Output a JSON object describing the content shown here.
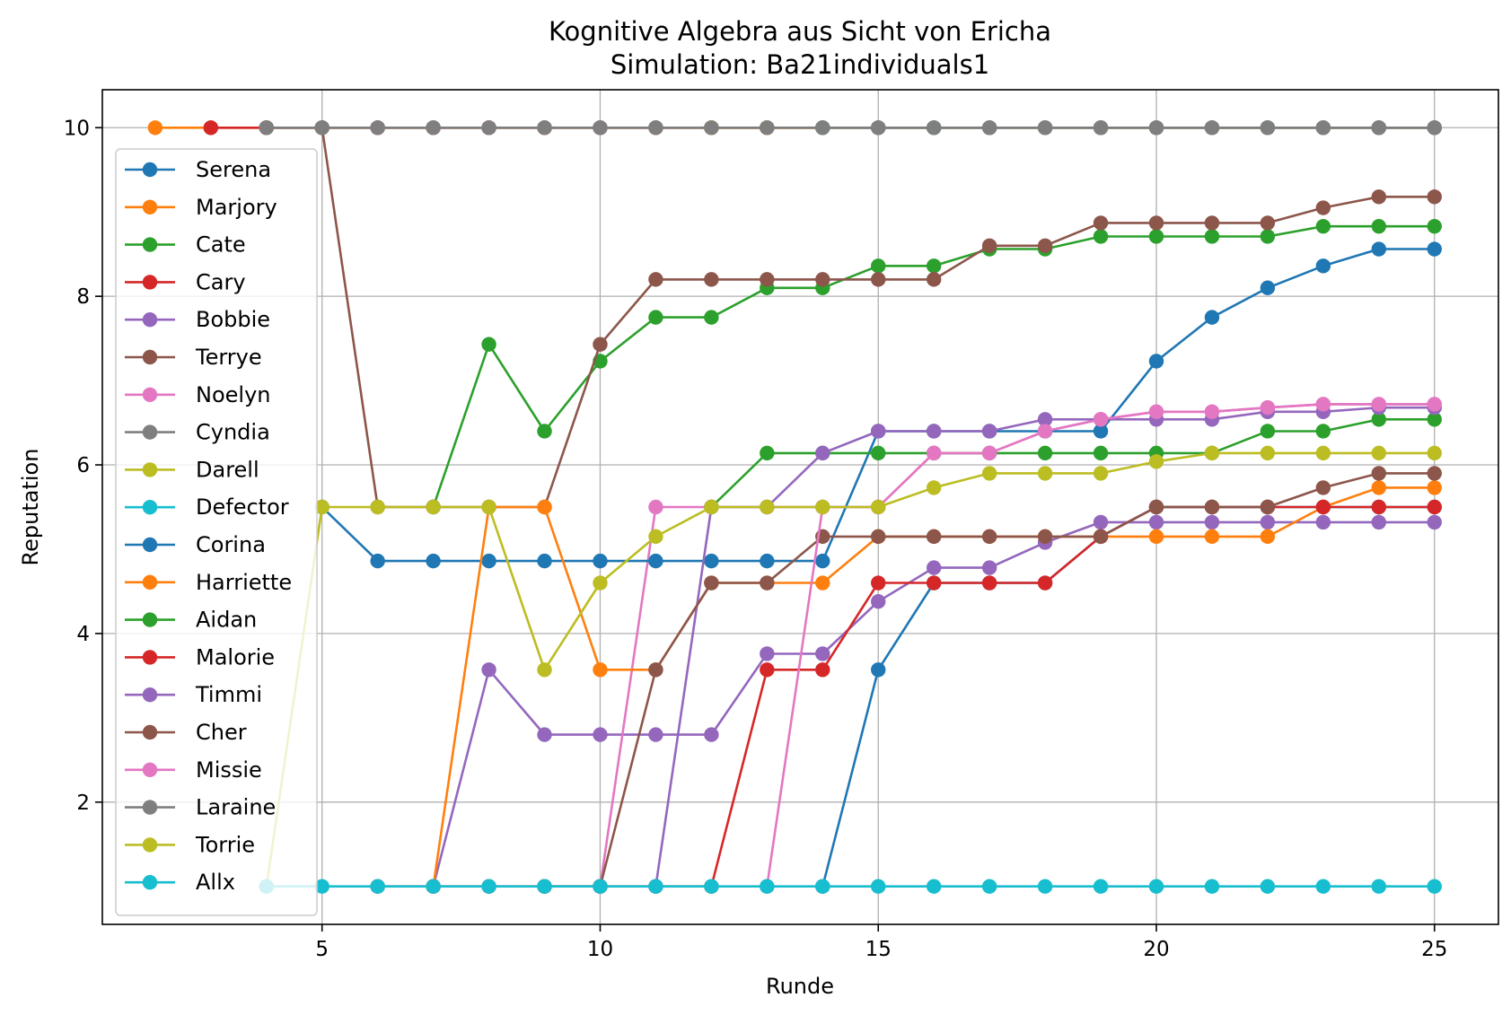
{
  "chart_data": {
    "type": "line",
    "title": "Kognitive Algebra aus Sicht von Ericha",
    "subtitle": "Simulation: Ba21individuals1",
    "xlabel": "Runde",
    "ylabel": "Reputation",
    "xlim": [
      1.05,
      26.15
    ],
    "ylim": [
      0.55,
      10.45
    ],
    "xticks": [
      5,
      10,
      15,
      20,
      25
    ],
    "yticks": [
      2,
      4,
      6,
      8,
      10
    ],
    "grid": true,
    "legend": "upper-left",
    "series": [
      {
        "name": "Serena",
        "color": "#1f77b4",
        "x": [
          14,
          15,
          16,
          17,
          18,
          19,
          20,
          21,
          22,
          23,
          24,
          25
        ],
        "y": [
          1,
          3.57,
          4.6,
          4.6,
          4.6,
          5.15,
          5.5,
          5.5,
          5.5,
          5.5,
          5.5,
          5.5
        ]
      },
      {
        "name": "Marjory",
        "color": "#ff7f0e",
        "x": [
          2,
          3,
          4,
          5,
          6,
          7,
          8,
          9,
          10,
          11,
          12,
          13,
          14,
          15,
          16,
          17,
          18,
          19,
          20,
          21,
          22,
          23,
          24,
          25
        ],
        "y": [
          10,
          10,
          10,
          10,
          10,
          10,
          10,
          10,
          10,
          10,
          10,
          10,
          10,
          10,
          10,
          10,
          10,
          10,
          10,
          10,
          10,
          10,
          10,
          10
        ]
      },
      {
        "name": "Cate",
        "color": "#2ca02c",
        "x": [
          7,
          8,
          9,
          10,
          11,
          12,
          13,
          14,
          15,
          16,
          17,
          18,
          19,
          20,
          21,
          22,
          23,
          24,
          25
        ],
        "y": [
          5.5,
          7.43,
          6.4,
          7.23,
          7.75,
          7.75,
          8.1,
          8.1,
          8.36,
          8.36,
          8.56,
          8.56,
          8.71,
          8.71,
          8.71,
          8.71,
          8.83,
          8.83,
          8.83
        ]
      },
      {
        "name": "Cary",
        "color": "#d62728",
        "x": [
          3,
          4,
          5,
          6,
          7,
          8,
          9,
          10,
          11,
          12,
          13,
          14,
          15,
          16,
          17,
          18,
          19,
          20,
          21,
          22,
          23,
          24,
          25
        ],
        "y": [
          10,
          10,
          10,
          10,
          10,
          10,
          10,
          10,
          10,
          10,
          10,
          10,
          10,
          10,
          10,
          10,
          10,
          10,
          10,
          10,
          10,
          10,
          10
        ]
      },
      {
        "name": "Bobbie",
        "color": "#9467bd",
        "x": [
          7,
          8,
          9,
          10,
          11,
          12,
          13,
          14,
          15,
          16,
          17,
          18,
          19,
          20,
          21,
          22,
          23,
          24,
          25
        ],
        "y": [
          1,
          3.57,
          2.8,
          2.8,
          2.8,
          2.8,
          3.76,
          3.76,
          4.38,
          4.78,
          4.78,
          5.08,
          5.32,
          5.32,
          5.32,
          5.32,
          5.32,
          5.32,
          5.32
        ]
      },
      {
        "name": "Terrye",
        "color": "#8c564b",
        "x": [
          4,
          5,
          6,
          7,
          8,
          9,
          10,
          11,
          12,
          13,
          14,
          15,
          16,
          17,
          18,
          19,
          20,
          21,
          22,
          23,
          24,
          25
        ],
        "y": [
          10,
          10,
          5.5,
          5.5,
          5.5,
          5.5,
          7.43,
          8.2,
          8.2,
          8.2,
          8.2,
          8.2,
          8.2,
          8.6,
          8.6,
          8.87,
          8.87,
          8.87,
          8.87,
          9.05,
          9.18,
          9.18
        ]
      },
      {
        "name": "Noelyn",
        "color": "#e377c2",
        "x": [
          10,
          11,
          12,
          13,
          14,
          15,
          16,
          17,
          18,
          19,
          20,
          21,
          22,
          23,
          24,
          25
        ],
        "y": [
          1,
          5.5,
          5.5,
          5.5,
          5.5,
          5.5,
          6.14,
          6.14,
          6.4,
          6.54,
          6.63,
          6.63,
          6.68,
          6.72,
          6.72,
          6.72
        ]
      },
      {
        "name": "Cyndia",
        "color": "#7f7f7f",
        "x": [
          4,
          5,
          6,
          7,
          8,
          9,
          10,
          11,
          12,
          13,
          14,
          15,
          16,
          17,
          18,
          19,
          20,
          21,
          22,
          23,
          24,
          25
        ],
        "y": [
          10,
          10,
          10,
          10,
          10,
          10,
          10,
          10,
          10,
          10,
          10,
          10,
          10,
          10,
          10,
          10,
          10,
          10,
          10,
          10,
          10,
          10
        ]
      },
      {
        "name": "Darell",
        "color": "#bcbd22",
        "x": [
          12,
          13,
          14,
          15,
          16,
          17,
          18,
          19,
          20,
          21,
          22,
          23,
          24,
          25
        ],
        "y": [
          10,
          10,
          10,
          10,
          10,
          10,
          10,
          10,
          10,
          10,
          10,
          10,
          10,
          10
        ]
      },
      {
        "name": "Defector",
        "color": "#17becf",
        "x": [
          14,
          15,
          16,
          17,
          18,
          19,
          20,
          21,
          22,
          23,
          24,
          25
        ],
        "y": [
          10,
          10,
          10,
          10,
          10,
          10,
          10,
          10,
          10,
          10,
          10,
          10
        ]
      },
      {
        "name": "Corina",
        "color": "#1f77b4",
        "x": [
          5,
          6,
          7,
          8,
          9,
          10,
          11,
          12,
          13,
          14,
          15,
          16,
          17,
          18,
          19,
          20,
          21,
          22,
          23,
          24,
          25
        ],
        "y": [
          5.5,
          4.86,
          4.86,
          4.86,
          4.86,
          4.86,
          4.86,
          4.86,
          4.86,
          4.86,
          6.4,
          6.4,
          6.4,
          6.4,
          6.4,
          7.23,
          7.75,
          8.1,
          8.36,
          8.56,
          8.56
        ]
      },
      {
        "name": "Harriette",
        "color": "#ff7f0e",
        "x": [
          7,
          8,
          9,
          10,
          11,
          12,
          13,
          14,
          15,
          16,
          17,
          18,
          19,
          20,
          21,
          22,
          23,
          24,
          25
        ],
        "y": [
          1,
          5.5,
          5.5,
          3.57,
          3.57,
          4.6,
          4.6,
          4.6,
          5.15,
          5.15,
          5.15,
          5.15,
          5.15,
          5.15,
          5.15,
          5.15,
          5.5,
          5.73,
          5.73
        ]
      },
      {
        "name": "Aidan",
        "color": "#2ca02c",
        "x": [
          12,
          13,
          14,
          15,
          16,
          17,
          18,
          19,
          20,
          21,
          22,
          23,
          24,
          25
        ],
        "y": [
          5.5,
          6.14,
          6.14,
          6.14,
          6.14,
          6.14,
          6.14,
          6.14,
          6.14,
          6.14,
          6.4,
          6.4,
          6.54,
          6.54
        ]
      },
      {
        "name": "Malorie",
        "color": "#d62728",
        "x": [
          6,
          7,
          8,
          9,
          10,
          11,
          12,
          13,
          14,
          15,
          16,
          17,
          18,
          19,
          20,
          21,
          22,
          23,
          24,
          25
        ],
        "y": [
          1,
          1,
          1,
          1,
          1,
          1,
          1,
          3.57,
          3.57,
          4.6,
          4.6,
          4.6,
          4.6,
          5.15,
          5.5,
          5.5,
          5.5,
          5.5,
          5.5,
          5.5
        ]
      },
      {
        "name": "Timmi",
        "color": "#9467bd",
        "x": [
          11,
          12,
          13,
          14,
          15,
          16,
          17,
          18,
          19,
          20,
          21,
          22,
          23,
          24,
          25
        ],
        "y": [
          1,
          5.5,
          5.5,
          6.14,
          6.4,
          6.4,
          6.4,
          6.54,
          6.54,
          6.54,
          6.54,
          6.63,
          6.63,
          6.68,
          6.68
        ]
      },
      {
        "name": "Cher",
        "color": "#8c564b",
        "x": [
          9,
          10,
          11,
          12,
          13,
          14,
          15,
          16,
          17,
          18,
          19,
          20,
          21,
          22,
          23,
          24,
          25
        ],
        "y": [
          1,
          1,
          3.57,
          4.6,
          4.6,
          5.15,
          5.15,
          5.15,
          5.15,
          5.15,
          5.15,
          5.5,
          5.5,
          5.5,
          5.73,
          5.9,
          5.9
        ]
      },
      {
        "name": "Missie",
        "color": "#e377c2",
        "x": [
          13,
          14,
          15,
          16,
          17,
          18,
          19,
          20,
          21,
          22,
          23,
          24,
          25
        ],
        "y": [
          1,
          5.5,
          5.5,
          6.14,
          6.14,
          6.4,
          6.54,
          6.63,
          6.63,
          6.68,
          6.72,
          6.72,
          6.72
        ]
      },
      {
        "name": "Laraine",
        "color": "#7f7f7f",
        "x": [
          4,
          5,
          6,
          7,
          8,
          9,
          10,
          11,
          12,
          13,
          14,
          15,
          16,
          17,
          18,
          19,
          20,
          21,
          22,
          23,
          24,
          25
        ],
        "y": [
          10,
          10,
          10,
          10,
          10,
          10,
          10,
          10,
          10,
          10,
          10,
          10,
          10,
          10,
          10,
          10,
          10,
          10,
          10,
          10,
          10,
          10
        ]
      },
      {
        "name": "Torrie",
        "color": "#bcbd22",
        "x": [
          4,
          5,
          6,
          7,
          8,
          9,
          10,
          11,
          12,
          13,
          14,
          15,
          16,
          17,
          18,
          19,
          20,
          21,
          22,
          23,
          24,
          25
        ],
        "y": [
          1,
          5.5,
          5.5,
          5.5,
          5.5,
          3.57,
          4.6,
          5.15,
          5.5,
          5.5,
          5.5,
          5.5,
          5.73,
          5.9,
          5.9,
          5.9,
          6.04,
          6.14,
          6.14,
          6.14,
          6.14,
          6.14
        ]
      },
      {
        "name": "Allx",
        "color": "#17becf",
        "x": [
          4,
          5,
          6,
          7,
          8,
          9,
          10,
          11,
          12,
          13,
          14,
          15,
          16,
          17,
          18,
          19,
          20,
          21,
          22,
          23,
          24,
          25
        ],
        "y": [
          1,
          1,
          1,
          1,
          1,
          1,
          1,
          1,
          1,
          1,
          1,
          1,
          1,
          1,
          1,
          1,
          1,
          1,
          1,
          1,
          1,
          1
        ]
      }
    ]
  }
}
